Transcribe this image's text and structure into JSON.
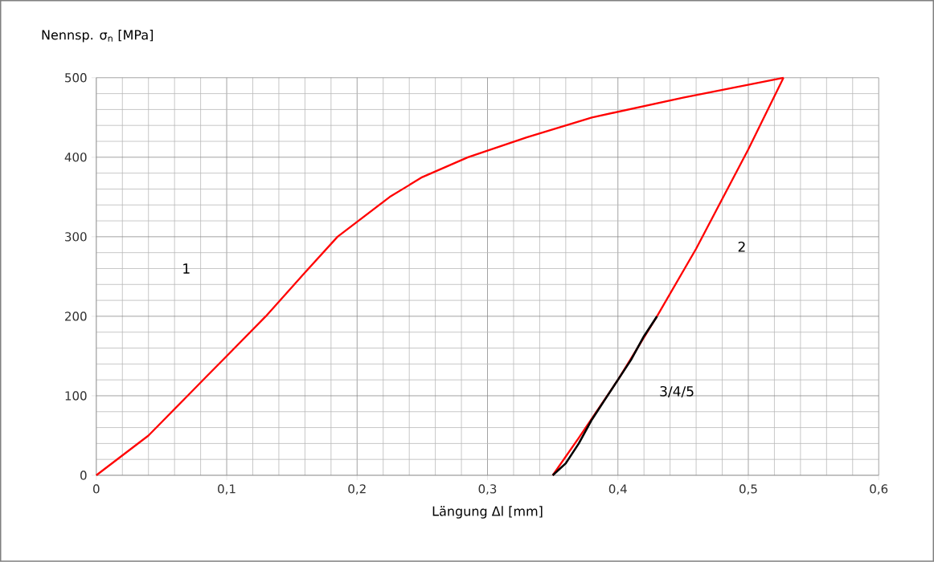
{
  "chart_data": {
    "type": "line",
    "xlabel": "Längung Δl [mm]",
    "ylabel": "Nennsp. σ$_{n}$ [MPa]",
    "xlim": [
      0,
      0.6
    ],
    "ylim": [
      0,
      500
    ],
    "xticks": [
      0,
      {
        "value": 0.1,
        "label": "0,1"
      },
      {
        "value": 0.2,
        "label": "0,2"
      },
      {
        "value": 0.3,
        "label": "0,3"
      },
      {
        "value": 0.4,
        "label": "0,4"
      },
      {
        "value": 0.5,
        "label": "0,5"
      },
      {
        "value": 0.6,
        "label": "0,6"
      }
    ],
    "yticks": [
      0,
      100,
      200,
      300,
      400,
      500
    ],
    "grid": true,
    "marker": "none",
    "line_style": "solid",
    "series": [
      {
        "color": "#ff0000",
        "x": [
          0,
          0.02,
          0.04,
          0.07,
          0.1,
          0.13,
          0.16,
          0.185,
          0.205,
          0.225,
          0.25,
          0.285,
          0.33,
          0.38,
          0.45,
          0.527
        ],
        "values": [
          0,
          25,
          50,
          100,
          150,
          200,
          255,
          300,
          325,
          350,
          375,
          400,
          425,
          450,
          475,
          500
        ]
      },
      {
        "color": "#ff0000",
        "x": [
          0.527,
          0.5,
          0.46,
          0.43,
          0.4,
          0.37,
          0.35
        ],
        "values": [
          500,
          410,
          285,
          200,
          120,
          47,
          0
        ]
      },
      {
        "color": "#000000",
        "x": [
          0.35,
          0.36,
          0.37,
          0.38,
          0.39,
          0.4,
          0.41,
          0.42,
          0.43
        ],
        "values": [
          0,
          15,
          40,
          70,
          95,
          120,
          145,
          175,
          200
        ]
      }
    ],
    "annotations": [
      "1",
      "2",
      "3/4/5"
    ]
  }
}
